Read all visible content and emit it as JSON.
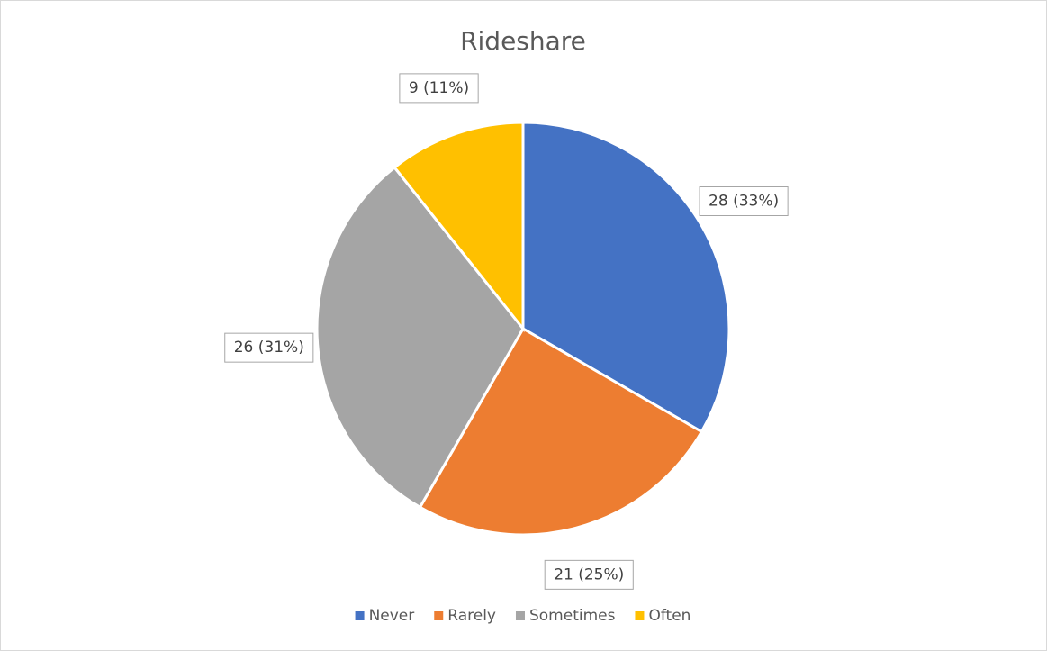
{
  "chart_data": {
    "type": "pie",
    "title": "Rideshare",
    "categories": [
      "Never",
      "Rarely",
      "Sometimes",
      "Often"
    ],
    "values": [
      28,
      21,
      26,
      9
    ],
    "value_labels": [
      "28 (33%)",
      "21 (25%)",
      "26 (31%)",
      "9 (11%)"
    ],
    "colors": [
      "#4472c4",
      "#ed7d31",
      "#a5a5a5",
      "#ffc000"
    ],
    "legend": "bottom"
  }
}
